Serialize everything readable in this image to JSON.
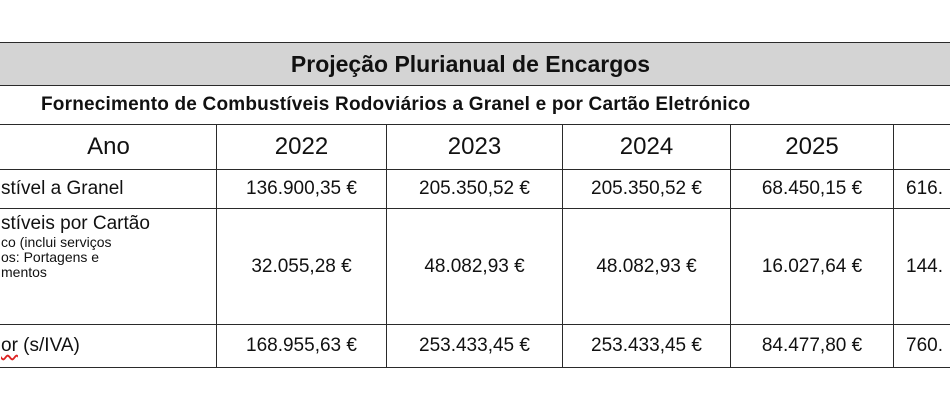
{
  "table": {
    "title": "Projeção Plurianual de Encargos",
    "subtitle": "Fornecimento de Combustíveis Rodoviários a Granel e por Cartão Eletrónico",
    "header": {
      "row_label": "Ano",
      "years": [
        "2022",
        "2023",
        "2024",
        "2025",
        ""
      ]
    },
    "rows": [
      {
        "label": "stível a Granel",
        "values": [
          "136.900,35 €",
          "205.350,52 €",
          "205.350,52 €",
          "68.450,15 €",
          "616."
        ]
      },
      {
        "label_line1": "stíveis por Cartão",
        "label_line2": "co (inclui serviços",
        "label_line3": "os: Portagens e",
        "label_line4": "mentos",
        "values": [
          "32.055,28 €",
          "48.082,93 €",
          "48.082,93 €",
          "16.027,64 €",
          "144."
        ]
      },
      {
        "label_prefix": "or",
        "label_rest": " (s/IVA)",
        "values": [
          "168.955,63 €",
          "253.433,45 €",
          "253.433,45 €",
          "84.477,80 €",
          "760."
        ]
      }
    ]
  }
}
